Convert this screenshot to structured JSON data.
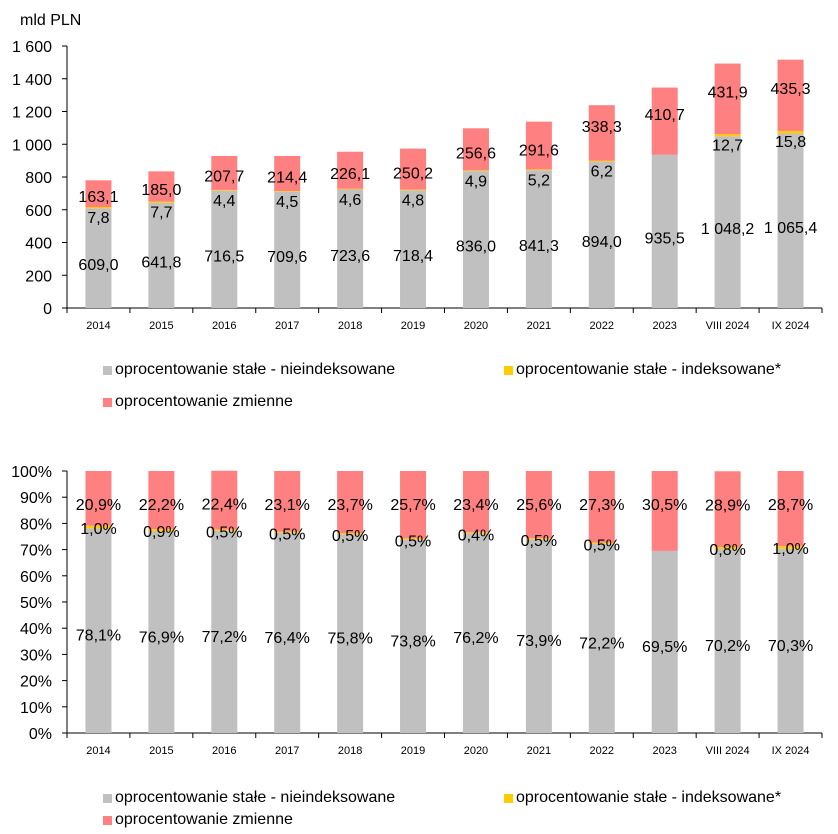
{
  "colors": {
    "fixed_nonindexed": "#c0c0c0",
    "fixed_indexed": "#ffcc00",
    "variable": "#ff8080"
  },
  "legend": {
    "fixed_nonindexed": "oprocentowanie stałe - nieindeksowane",
    "fixed_indexed": "oprocentowanie stałe - indeksowane*",
    "variable": "oprocentowanie zmienne"
  },
  "chart_data": [
    {
      "type": "bar",
      "stacked": true,
      "ylabel": "mld PLN",
      "ylim": [
        0,
        1600
      ],
      "yticks": [
        "0",
        "200",
        "400",
        "600",
        "800",
        "1 000",
        "1 200",
        "1 400",
        "1 600"
      ],
      "categories": [
        "2014",
        "2015",
        "2016",
        "2017",
        "2018",
        "2019",
        "2020",
        "2021",
        "2022",
        "2023",
        "VIII 2024",
        "IX 2024"
      ],
      "series": [
        {
          "name": "oprocentowanie stałe - nieindeksowane",
          "values": [
            609.0,
            641.8,
            716.5,
            709.6,
            723.6,
            718.4,
            836.0,
            841.3,
            894.0,
            935.5,
            1048.2,
            1065.4
          ],
          "labels": [
            "609,0",
            "641,8",
            "716,5",
            "709,6",
            "723,6",
            "718,4",
            "836,0",
            "841,3",
            "894,0",
            "935,5",
            "1 048,2",
            "1 065,4"
          ]
        },
        {
          "name": "oprocentowanie stałe - indeksowane*",
          "values": [
            7.8,
            7.7,
            4.4,
            4.5,
            4.6,
            4.8,
            4.9,
            5.2,
            6.2,
            0,
            12.7,
            15.8
          ],
          "labels": [
            "7,8",
            "7,7",
            "4,4",
            "4,5",
            "4,6",
            "4,8",
            "4,9",
            "5,2",
            "6,2",
            "",
            "12,7",
            "15,8"
          ]
        },
        {
          "name": "oprocentowanie zmienne",
          "values": [
            163.1,
            185.0,
            207.7,
            214.4,
            226.1,
            250.2,
            256.6,
            291.6,
            338.3,
            410.7,
            431.9,
            435.3
          ],
          "labels": [
            "163,1",
            "185,0",
            "207,7",
            "214,4",
            "226,1",
            "250,2",
            "256,6",
            "291,6",
            "338,3",
            "410,7",
            "431,9",
            "435,3"
          ]
        }
      ],
      "grid": false,
      "legend_position": "bottom"
    },
    {
      "type": "bar",
      "stacked": true,
      "percent": true,
      "ylim": [
        0,
        100
      ],
      "yticks": [
        "0%",
        "10%",
        "20%",
        "30%",
        "40%",
        "50%",
        "60%",
        "70%",
        "80%",
        "90%",
        "100%"
      ],
      "categories": [
        "2014",
        "2015",
        "2016",
        "2017",
        "2018",
        "2019",
        "2020",
        "2021",
        "2022",
        "2023",
        "VIII 2024",
        "IX 2024"
      ],
      "series": [
        {
          "name": "oprocentowanie stałe - nieindeksowane",
          "values": [
            78.1,
            76.9,
            77.2,
            76.4,
            75.8,
            73.8,
            76.2,
            73.9,
            72.2,
            69.5,
            70.2,
            70.3
          ],
          "labels": [
            "78,1%",
            "76,9%",
            "77,2%",
            "76,4%",
            "75,8%",
            "73,8%",
            "76,2%",
            "73,9%",
            "72,2%",
            "69,5%",
            "70,2%",
            "70,3%"
          ]
        },
        {
          "name": "oprocentowanie stałe - indeksowane*",
          "values": [
            1.0,
            0.9,
            0.5,
            0.5,
            0.5,
            0.5,
            0.4,
            0.5,
            0.5,
            0,
            0.8,
            1.0
          ],
          "labels": [
            "1,0%",
            "0,9%",
            "0,5%",
            "0,5%",
            "0,5%",
            "0,5%",
            "0,4%",
            "0,5%",
            "0,5%",
            "",
            "0,8%",
            "1,0%"
          ]
        },
        {
          "name": "oprocentowanie zmienne",
          "values": [
            20.9,
            22.2,
            22.4,
            23.1,
            23.7,
            25.7,
            23.4,
            25.6,
            27.3,
            30.5,
            28.9,
            28.7
          ],
          "labels": [
            "20,9%",
            "22,2%",
            "22,4%",
            "23,1%",
            "23,7%",
            "25,7%",
            "23,4%",
            "25,6%",
            "27,3%",
            "30,5%",
            "28,9%",
            "28,7%"
          ]
        }
      ],
      "grid": false,
      "legend_position": "bottom"
    }
  ]
}
